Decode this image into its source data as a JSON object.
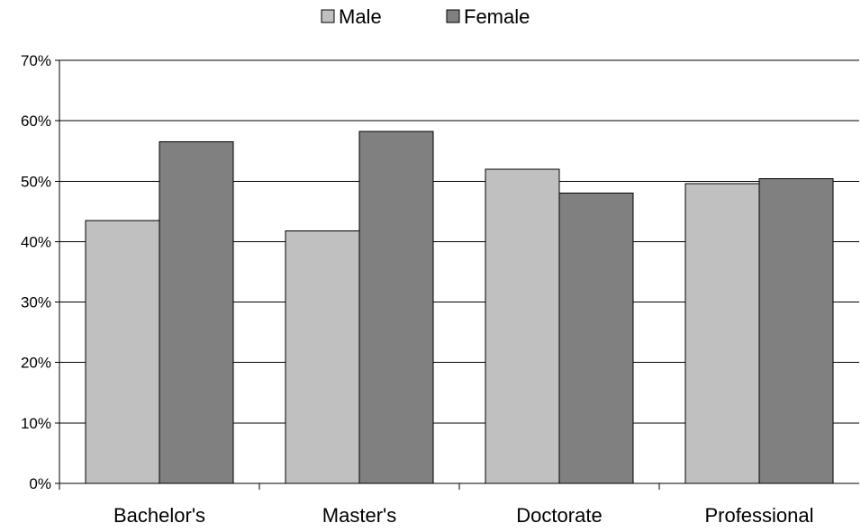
{
  "chart_data": {
    "type": "bar",
    "categories": [
      "Bachelor's",
      "Master's",
      "Doctorate",
      "Professional"
    ],
    "series": [
      {
        "name": "Male",
        "values": [
          43.5,
          41.8,
          52.0,
          49.6
        ],
        "color": "#c0c0c0"
      },
      {
        "name": "Female",
        "values": [
          56.5,
          58.2,
          48.0,
          50.4
        ],
        "color": "#808080"
      }
    ],
    "ylim": [
      0,
      70
    ],
    "ytick_values": [
      0,
      10,
      20,
      30,
      40,
      50,
      60,
      70
    ],
    "ytick_labels": [
      "0%",
      "10%",
      "20%",
      "30%",
      "40%",
      "50%",
      "60%",
      "70%"
    ],
    "grid": true,
    "legend_position": "top-center",
    "title": "",
    "xlabel": "",
    "ylabel": ""
  }
}
